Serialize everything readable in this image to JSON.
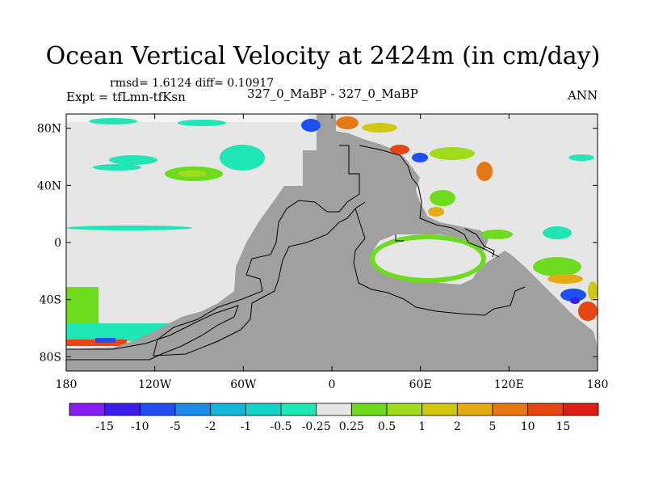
{
  "chart_data": {
    "type": "heatmap",
    "title": "Ocean Vertical Velocity at 2424m (in cm/day)",
    "stats_text": "rmsd= 1.6124 diff= 0.10917",
    "left_label": "Expt = tfLmn-tfKsn",
    "center_label": "327_0_MaBP - 327_0_MaBP",
    "right_label": "ANN",
    "x_ticks": [
      "180",
      "120W",
      "60W",
      "0",
      "60E",
      "120E",
      "180"
    ],
    "y_ticks": [
      "80N",
      "40N",
      "0",
      "40S",
      "80S"
    ],
    "colorbar": {
      "labels": [
        "-15",
        "-10",
        "-5",
        "-2",
        "-1",
        "-0.5",
        "-0.25",
        "0.25",
        "0.5",
        "1",
        "2",
        "5",
        "10",
        "15"
      ],
      "colors": [
        "#8a1cf0",
        "#3c1ee6",
        "#1e50f0",
        "#1e8ce6",
        "#14b4dc",
        "#14d2c8",
        "#1ee6b4",
        "#e6e6e6",
        "#6edc1e",
        "#a0dc1e",
        "#d2c814",
        "#e6aa14",
        "#e67814",
        "#e64614",
        "#dc1e14"
      ]
    },
    "land_color": "#a0a0a0",
    "near_zero_color": "#e6e6e6"
  }
}
